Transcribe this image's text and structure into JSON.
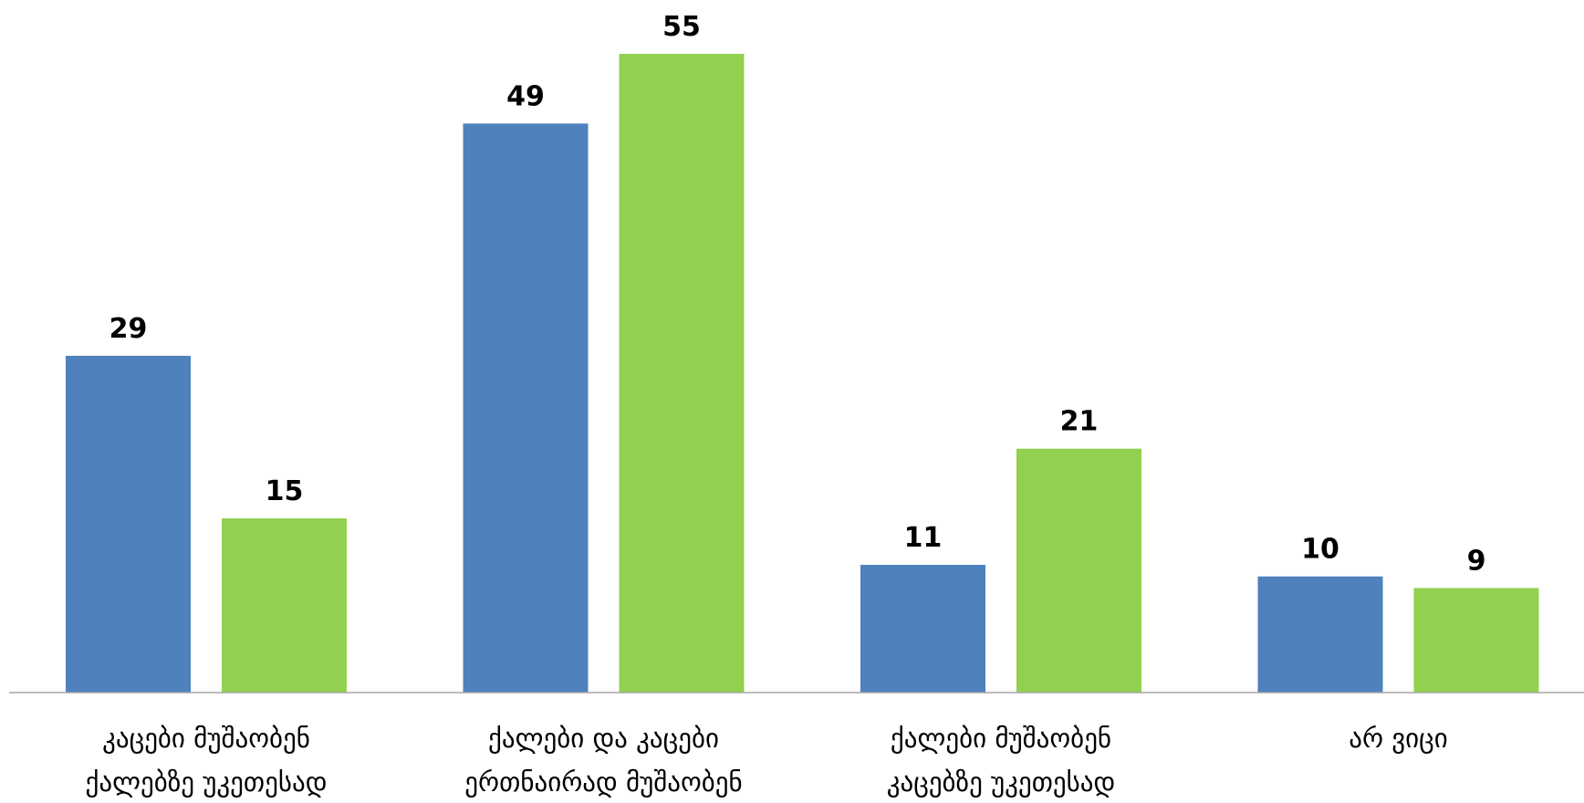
{
  "chart_data": {
    "type": "bar",
    "categories": [
      [
        "კაცები მუშაობენ",
        "ქალებზე უკეთესად"
      ],
      [
        "ქალები და კაცები",
        "ერთნაირად მუშაობენ"
      ],
      [
        "ქალები მუშაობენ",
        "კაცებზე უკეთესად"
      ],
      [
        "არ ვიცი"
      ]
    ],
    "series": [
      {
        "values": [
          29,
          49,
          11,
          10
        ],
        "color": "#4f81bd"
      },
      {
        "values": [
          15,
          55,
          21,
          9
        ],
        "color": "#92d050"
      }
    ],
    "ylim": [
      0,
      57
    ],
    "grid": false,
    "legend": "none",
    "axis_color": "#a6a6a6"
  }
}
